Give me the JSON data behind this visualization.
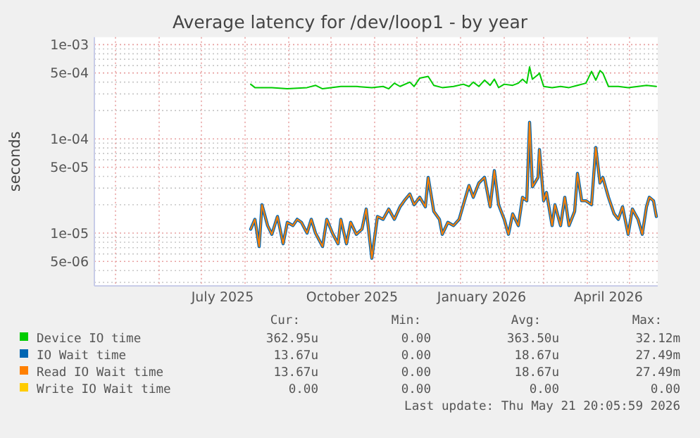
{
  "chart_data": {
    "type": "line",
    "title": "Average latency for /dev/loop1 - by year",
    "ylabel": "seconds",
    "log": "y",
    "grid": true,
    "legend": "bottom",
    "line_style": "solid",
    "xlim": [
      "2025-04-16",
      "2026-05-21"
    ],
    "xticks": [
      {
        "value": "2025-05-01",
        "label": null
      },
      {
        "value": "2025-06-01",
        "label": null
      },
      {
        "value": "2025-07-01",
        "label": null
      },
      {
        "value": "2025-07-16",
        "label": "July 2025"
      },
      {
        "value": "2025-08-01",
        "label": null
      },
      {
        "value": "2025-09-01",
        "label": null
      },
      {
        "value": "2025-10-01",
        "label": null
      },
      {
        "value": "2025-10-16",
        "label": "October 2025"
      },
      {
        "value": "2025-11-01",
        "label": null
      },
      {
        "value": "2025-12-01",
        "label": null
      },
      {
        "value": "2026-01-01",
        "label": null
      },
      {
        "value": "2026-01-16",
        "label": "January 2026"
      },
      {
        "value": "2026-02-01",
        "label": null
      },
      {
        "value": "2026-03-01",
        "label": null
      },
      {
        "value": "2026-04-01",
        "label": null
      },
      {
        "value": "2026-04-16",
        "label": "April 2026"
      },
      {
        "value": "2026-05-01",
        "label": null
      }
    ],
    "ylim": [
      2.75e-06,
      0.0012
    ],
    "yticks": [
      {
        "value": 3e-06,
        "label": null
      },
      {
        "value": 4e-06,
        "label": null
      },
      {
        "value": 5e-06,
        "label": "5e-06"
      },
      {
        "value": 6e-06,
        "label": null
      },
      {
        "value": 7e-06,
        "label": null
      },
      {
        "value": 8e-06,
        "label": null
      },
      {
        "value": 9e-06,
        "label": null
      },
      {
        "value": 1e-05,
        "label": "1e-05"
      },
      {
        "value": 2e-05,
        "label": null
      },
      {
        "value": 3e-05,
        "label": null
      },
      {
        "value": 4e-05,
        "label": null
      },
      {
        "value": 5e-05,
        "label": "5e-05"
      },
      {
        "value": 6e-05,
        "label": null
      },
      {
        "value": 7e-05,
        "label": null
      },
      {
        "value": 8e-05,
        "label": null
      },
      {
        "value": 9e-05,
        "label": null
      },
      {
        "value": 0.0001,
        "label": "1e-04"
      },
      {
        "value": 0.0002,
        "label": null
      },
      {
        "value": 0.0003,
        "label": null
      },
      {
        "value": 0.0004,
        "label": null
      },
      {
        "value": 0.0005,
        "label": "5e-04"
      },
      {
        "value": 0.0006,
        "label": null
      },
      {
        "value": 0.0007,
        "label": null
      },
      {
        "value": 0.0008,
        "label": null
      },
      {
        "value": 0.0009,
        "label": null
      },
      {
        "value": 0.001,
        "label": "1e-03"
      }
    ],
    "x": [
      "2025-08-05",
      "2025-08-08",
      "2025-08-11",
      "2025-08-13",
      "2025-08-17",
      "2025-08-20",
      "2025-08-24",
      "2025-08-28",
      "2025-08-31",
      "2025-09-04",
      "2025-09-07",
      "2025-09-10",
      "2025-09-14",
      "2025-09-17",
      "2025-09-20",
      "2025-09-25",
      "2025-09-28",
      "2025-10-02",
      "2025-10-06",
      "2025-10-08",
      "2025-10-12",
      "2025-10-15",
      "2025-10-19",
      "2025-10-23",
      "2025-10-26",
      "2025-10-30",
      "2025-11-03",
      "2025-11-07",
      "2025-11-11",
      "2025-11-15",
      "2025-11-19",
      "2025-11-22",
      "2025-11-26",
      "2025-11-29",
      "2025-12-03",
      "2025-12-07",
      "2025-12-09",
      "2025-12-13",
      "2025-12-17",
      "2025-12-19",
      "2025-12-23",
      "2025-12-27",
      "2025-12-31",
      "2026-01-03",
      "2026-01-07",
      "2026-01-10",
      "2026-01-14",
      "2026-01-18",
      "2026-01-22",
      "2026-01-25",
      "2026-01-28",
      "2026-02-01",
      "2026-02-04",
      "2026-02-07",
      "2026-02-11",
      "2026-02-14",
      "2026-02-17",
      "2026-02-19",
      "2026-02-21",
      "2026-02-25",
      "2026-02-26",
      "2026-03-01",
      "2026-03-03",
      "2026-03-07",
      "2026-03-09",
      "2026-03-13",
      "2026-03-16",
      "2026-03-19",
      "2026-03-23",
      "2026-03-25",
      "2026-03-28",
      "2026-03-31",
      "2026-04-04",
      "2026-04-07",
      "2026-04-10",
      "2026-04-12",
      "2026-04-16",
      "2026-04-20",
      "2026-04-23",
      "2026-04-26",
      "2026-04-30",
      "2026-05-03",
      "2026-05-07",
      "2026-05-10",
      "2026-05-13",
      "2026-05-15",
      "2026-05-18",
      "2026-05-20"
    ],
    "series": [
      {
        "name": "Device IO time",
        "color": "#00cc00",
        "x": [
          "2025-08-05",
          "2025-08-08",
          "2025-08-20",
          "2025-08-31",
          "2025-09-14",
          "2025-09-20",
          "2025-09-25",
          "2025-10-08",
          "2025-10-19",
          "2025-10-30",
          "2025-11-07",
          "2025-11-11",
          "2025-11-15",
          "2025-11-19",
          "2025-11-26",
          "2025-11-29",
          "2025-12-03",
          "2025-12-09",
          "2025-12-13",
          "2025-12-19",
          "2025-12-27",
          "2026-01-03",
          "2026-01-07",
          "2026-01-10",
          "2026-01-14",
          "2026-01-18",
          "2026-01-22",
          "2026-01-25",
          "2026-01-28",
          "2026-02-01",
          "2026-02-07",
          "2026-02-11",
          "2026-02-14",
          "2026-02-17",
          "2026-02-19",
          "2026-02-21",
          "2026-02-25",
          "2026-02-26",
          "2026-03-01",
          "2026-03-07",
          "2026-03-13",
          "2026-03-19",
          "2026-03-25",
          "2026-03-31",
          "2026-04-04",
          "2026-04-07",
          "2026-04-10",
          "2026-04-12",
          "2026-04-16",
          "2026-04-23",
          "2026-04-30",
          "2026-05-07",
          "2026-05-13",
          "2026-05-20"
        ],
        "values": [
          0.00038,
          0.00035,
          0.00035,
          0.00034,
          0.00035,
          0.00037,
          0.00034,
          0.00036,
          0.00036,
          0.00035,
          0.00036,
          0.00034,
          0.00039,
          0.00036,
          0.0004,
          0.00036,
          0.00044,
          0.00046,
          0.00037,
          0.00035,
          0.00036,
          0.00038,
          0.00036,
          0.0004,
          0.00036,
          0.00042,
          0.00037,
          0.00043,
          0.00035,
          0.00038,
          0.00037,
          0.00039,
          0.00043,
          0.00039,
          0.00058,
          0.00043,
          0.00048,
          0.0005,
          0.00036,
          0.00035,
          0.00036,
          0.00035,
          0.00037,
          0.00039,
          0.00052,
          0.00042,
          0.00053,
          0.0005,
          0.00036,
          0.00036,
          0.00035,
          0.00036,
          0.00037,
          0.00036
        ]
      },
      {
        "name": "IO Wait time",
        "color": "#0066b3",
        "values": [
          1.1e-05,
          1.4e-05,
          7.2e-06,
          2e-05,
          1.2e-05,
          9.7e-06,
          1.5e-05,
          7.7e-06,
          1.3e-05,
          1.2e-05,
          1.4e-05,
          1.3e-05,
          1e-05,
          1.4e-05,
          1e-05,
          7.2e-06,
          1.4e-05,
          1e-05,
          7.7e-06,
          1.4e-05,
          7.7e-06,
          1.3e-05,
          9.7e-06,
          1.1e-05,
          1.8e-05,
          5.4e-06,
          1.5e-05,
          1.4e-05,
          1.8e-05,
          1.4e-05,
          1.9e-05,
          2.2e-05,
          2.6e-05,
          2e-05,
          2.4e-05,
          1.9e-05,
          3.9e-05,
          1.7e-05,
          1.4e-05,
          9.7e-06,
          1.3e-05,
          1.2e-05,
          1.4e-05,
          2e-05,
          3.2e-05,
          2.4e-05,
          3.4e-05,
          3.9e-05,
          1.9e-05,
          4.6e-05,
          2e-05,
          1.4e-05,
          9.7e-06,
          1.6e-05,
          1.2e-05,
          2.4e-05,
          2.2e-05,
          0.00015,
          3.1e-05,
          3.9e-05,
          7.7e-05,
          2.2e-05,
          2.7e-05,
          1.2e-05,
          2e-05,
          1.2e-05,
          2.4e-05,
          1.2e-05,
          1.7e-05,
          4.3e-05,
          2.2e-05,
          2.2e-05,
          2e-05,
          8.1e-05,
          3.4e-05,
          3.9e-05,
          2.4e-05,
          1.6e-05,
          1.4e-05,
          1.9e-05,
          9.7e-06,
          1.8e-05,
          1.4e-05,
          9.7e-06,
          1.9e-05,
          2.4e-05,
          2.2e-05,
          1.5e-05
        ]
      },
      {
        "name": "Read IO Wait time",
        "color": "#ff8000",
        "values": [
          1.1e-05,
          1.4e-05,
          7.2e-06,
          2e-05,
          1.2e-05,
          9.7e-06,
          1.5e-05,
          7.7e-06,
          1.3e-05,
          1.2e-05,
          1.4e-05,
          1.3e-05,
          1e-05,
          1.4e-05,
          1e-05,
          7.2e-06,
          1.4e-05,
          1e-05,
          7.7e-06,
          1.4e-05,
          7.7e-06,
          1.3e-05,
          9.7e-06,
          1.1e-05,
          1.8e-05,
          5.4e-06,
          1.5e-05,
          1.4e-05,
          1.8e-05,
          1.4e-05,
          1.9e-05,
          2.2e-05,
          2.6e-05,
          2e-05,
          2.4e-05,
          1.9e-05,
          3.9e-05,
          1.7e-05,
          1.4e-05,
          9.7e-06,
          1.3e-05,
          1.2e-05,
          1.4e-05,
          2e-05,
          3.2e-05,
          2.4e-05,
          3.4e-05,
          3.9e-05,
          1.9e-05,
          4.6e-05,
          2e-05,
          1.4e-05,
          9.7e-06,
          1.6e-05,
          1.2e-05,
          2.4e-05,
          2.2e-05,
          0.00015,
          3.1e-05,
          3.9e-05,
          7.7e-05,
          2.2e-05,
          2.7e-05,
          1.2e-05,
          2e-05,
          1.2e-05,
          2.4e-05,
          1.2e-05,
          1.7e-05,
          4.3e-05,
          2.2e-05,
          2.2e-05,
          2e-05,
          8.1e-05,
          3.4e-05,
          3.9e-05,
          2.4e-05,
          1.6e-05,
          1.4e-05,
          1.9e-05,
          9.7e-06,
          1.8e-05,
          1.4e-05,
          9.7e-06,
          1.9e-05,
          2.4e-05,
          2.2e-05,
          1.5e-05
        ]
      },
      {
        "name": "Write IO Wait time",
        "color": "#ffcc00",
        "values": [
          null,
          null,
          null,
          null,
          null,
          null,
          null,
          null,
          null,
          null,
          null,
          null,
          null,
          null,
          null,
          null,
          null,
          null,
          null,
          null,
          null,
          null,
          null,
          null,
          null,
          null,
          null,
          null,
          null,
          null,
          null,
          null,
          null,
          null,
          null,
          null,
          null,
          null,
          null,
          null,
          null,
          null,
          null,
          null,
          null,
          null,
          null,
          null,
          null,
          null,
          null,
          null,
          null,
          null,
          null,
          null,
          null,
          null,
          null,
          null,
          null,
          null,
          null,
          null,
          null,
          null,
          null,
          null,
          null,
          null,
          null,
          null,
          null,
          null,
          null,
          null,
          null,
          null,
          null,
          null,
          null,
          null,
          null,
          null,
          null,
          null,
          null,
          null
        ]
      }
    ],
    "annotations": [
      "Cur:",
      "Min:",
      "Avg:",
      "Max:",
      "362.95u",
      "0.00",
      "363.50u",
      "32.12m",
      "13.67u",
      "0.00",
      "18.67u",
      "27.49m",
      "13.67u",
      "0.00",
      "18.67u",
      "27.49m",
      "0.00",
      "0.00",
      "0.00",
      "0.00",
      "Last update: Thu May 21 20:05:59 2026"
    ]
  }
}
